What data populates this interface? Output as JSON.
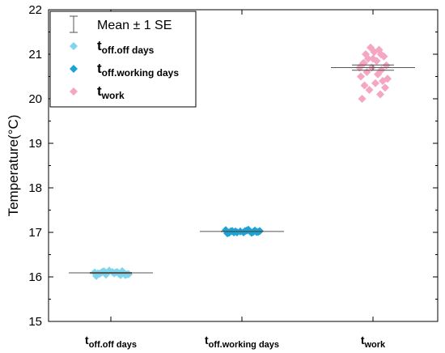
{
  "chart_data": {
    "type": "scatter",
    "title": "",
    "ylabel": "Temperature(°C)",
    "xlabel": "",
    "ylim": [
      15,
      22
    ],
    "yticks": [
      15,
      16,
      17,
      18,
      19,
      20,
      21,
      22
    ],
    "grid": false,
    "legend_position": "top-left",
    "legend_error_label": "Mean ± 1 SE",
    "categories": [
      {
        "main": "t",
        "sub": "off.off days"
      },
      {
        "main": "t",
        "sub": "off.working days"
      },
      {
        "main": "t",
        "sub": "work"
      }
    ],
    "series": [
      {
        "name_main": "t",
        "name_sub": "off.off days",
        "color": "#7fd6ec",
        "marker": "diamond",
        "mean": 16.09,
        "se": 0.01,
        "values": [
          16.02,
          16.04,
          16.05,
          16.06,
          16.07,
          16.08,
          16.09,
          16.1,
          16.11,
          16.12,
          16.13,
          16.14,
          16.06,
          16.08,
          16.1,
          16.12,
          16.04,
          16.09,
          16.11,
          16.07
        ]
      },
      {
        "name_main": "t",
        "name_sub": "off.working days",
        "color": "#1aa3d6",
        "marker": "diamond",
        "mean": 17.02,
        "se": 0.005,
        "values": [
          16.98,
          16.99,
          17.0,
          17.01,
          17.02,
          17.03,
          17.04,
          17.05,
          17.06,
          17.0,
          17.01,
          17.02,
          17.03,
          16.99,
          17.04,
          17.02,
          17.01,
          17.03,
          17.0,
          17.02
        ]
      },
      {
        "name_main": "t",
        "name_sub": "work",
        "color": "#f4a6c2",
        "marker": "diamond",
        "mean": 20.7,
        "se": 0.06,
        "values": [
          20.0,
          20.1,
          20.2,
          20.25,
          20.3,
          20.35,
          20.4,
          20.5,
          20.55,
          20.6,
          20.65,
          20.7,
          20.75,
          20.8,
          20.85,
          20.9,
          20.95,
          21.0,
          21.05,
          21.1,
          21.15,
          20.45,
          20.7,
          20.9,
          21.0,
          20.8
        ]
      }
    ]
  }
}
